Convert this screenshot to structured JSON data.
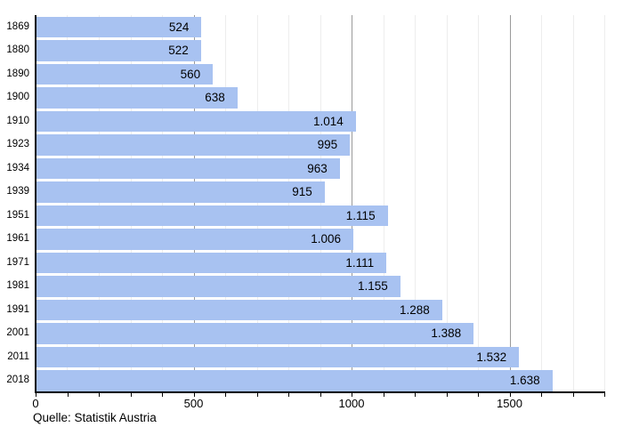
{
  "chart_data": {
    "type": "bar",
    "orientation": "horizontal",
    "title": "",
    "categories": [
      "1869",
      "1880",
      "1890",
      "1900",
      "1910",
      "1923",
      "1934",
      "1939",
      "1951",
      "1961",
      "1971",
      "1981",
      "1991",
      "2001",
      "2011",
      "2018"
    ],
    "values": [
      524,
      522,
      560,
      638,
      1014,
      995,
      963,
      915,
      1115,
      1006,
      1111,
      1155,
      1288,
      1388,
      1532,
      1638
    ],
    "value_labels": [
      "524",
      "522",
      "560",
      "638",
      "1.014",
      "995",
      "963",
      "915",
      "1.115",
      "1.006",
      "1.111",
      "1.155",
      "1.288",
      "1.388",
      "1.532",
      "1.638"
    ],
    "xlabel": "",
    "ylabel": "",
    "xlim": [
      0,
      1800
    ],
    "x_tick_step": 100,
    "x_major_step": 500,
    "x_tick_labels": [
      {
        "value": 0,
        "label": "0"
      },
      {
        "value": 500,
        "label": "500"
      },
      {
        "value": 1000,
        "label": "1000"
      },
      {
        "value": 1500,
        "label": "1500"
      }
    ],
    "grid": "vertical gridlines every 100, emphasized every 500",
    "legend": "none"
  },
  "style": {
    "bar_color": "#a8c2f1",
    "axis_color": "#000000",
    "grid_minor_color": "#ededed",
    "grid_major_color": "#9a9a9a",
    "text_color": "#000000",
    "background": "#ffffff"
  },
  "footer": {
    "source": "Quelle: Statistik Austria"
  }
}
